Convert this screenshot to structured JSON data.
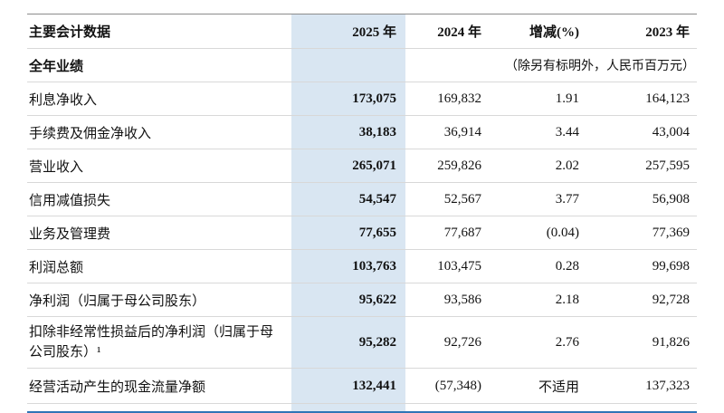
{
  "colors": {
    "highlight_band": "#d9e6f2",
    "row_rule": "#d8d8d8",
    "top_rule": "#8c8c8c",
    "bottom_rule": "#2e75b6"
  },
  "table": {
    "header": {
      "label": "主要会计数据",
      "y2025": "2025 年",
      "y2024": "2024 年",
      "change": "增减(%)",
      "y2023": "2023 年"
    },
    "section": {
      "label": "全年业绩",
      "note": "（除另有标明外，人民币百万元）"
    },
    "rows": [
      {
        "label": "利息净收入",
        "v2025": "173,075",
        "v2024": "169,832",
        "change": "1.91",
        "v2023": "164,123"
      },
      {
        "label": "手续费及佣金净收入",
        "v2025": "38,183",
        "v2024": "36,914",
        "change": "3.44",
        "v2023": "43,004"
      },
      {
        "label": "营业收入",
        "v2025": "265,071",
        "v2024": "259,826",
        "change": "2.02",
        "v2023": "257,595"
      },
      {
        "label": "信用减值损失",
        "v2025": "54,547",
        "v2024": "52,567",
        "change": "3.77",
        "v2023": "56,908"
      },
      {
        "label": "业务及管理费",
        "v2025": "77,655",
        "v2024": "77,687",
        "change": "(0.04)",
        "v2023": "77,369"
      },
      {
        "label": "利润总额",
        "v2025": "103,763",
        "v2024": "103,475",
        "change": "0.28",
        "v2023": "99,698"
      },
      {
        "label": "净利润（归属于母公司股东）",
        "v2025": "95,622",
        "v2024": "93,586",
        "change": "2.18",
        "v2023": "92,728"
      },
      {
        "label": "扣除非经常性损益后的净利润（归属于母公司股东）¹",
        "v2025": "95,282",
        "v2024": "92,726",
        "change": "2.76",
        "v2023": "91,826"
      },
      {
        "label": "经营活动产生的现金流量净额",
        "v2025": "132,441",
        "v2024": "(57,348)",
        "change": "不适用",
        "v2023": "137,323"
      }
    ]
  }
}
